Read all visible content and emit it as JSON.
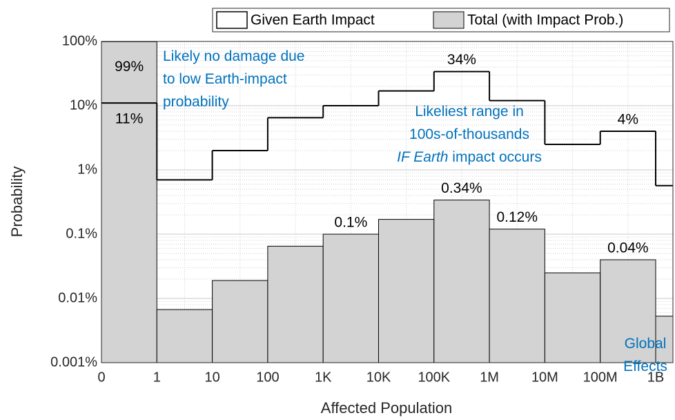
{
  "chart_data": {
    "type": "histogram",
    "xlabel": "Affected Population",
    "ylabel": "Probability",
    "x_edges": [
      "0",
      "1",
      "10",
      "100",
      "1K",
      "10K",
      "100K",
      "1M",
      "10M",
      "100M",
      "1B"
    ],
    "y_log": true,
    "ylim": [
      0.001,
      100
    ],
    "yticks": [
      {
        "value": 0.001,
        "label": "0.001%"
      },
      {
        "value": 0.01,
        "label": "0.01%"
      },
      {
        "value": 0.1,
        "label": "0.1%"
      },
      {
        "value": 1,
        "label": "1%"
      },
      {
        "value": 10,
        "label": "10%"
      },
      {
        "value": 100,
        "label": "100%"
      }
    ],
    "grid": true,
    "legend": "top-right",
    "series": [
      {
        "name": "Given Earth Impact",
        "style": "step",
        "color": "#000000",
        "values": [
          11,
          0.7,
          2,
          6.5,
          10,
          17,
          34,
          12,
          2.5,
          4,
          0.57
        ],
        "value_labels": [
          "11%",
          null,
          null,
          null,
          null,
          null,
          "34%",
          null,
          null,
          "4%",
          null
        ]
      },
      {
        "name": "Total (with Impact Prob.)",
        "style": "bar",
        "color": "#d3d3d3",
        "values": [
          99,
          0.0067,
          0.019,
          0.065,
          0.1,
          0.17,
          0.34,
          0.12,
          0.025,
          0.04,
          0.0053
        ],
        "value_labels": [
          "99%",
          null,
          null,
          null,
          "0.1%",
          null,
          "0.34%",
          "0.12%",
          null,
          "0.04%",
          null
        ]
      }
    ],
    "annotations": [
      {
        "lines": [
          [
            {
              "text": "Likely no damage due"
            }
          ],
          [
            {
              "text": "to low Earth-impact"
            }
          ],
          [
            {
              "text": "probability"
            }
          ]
        ]
      },
      {
        "lines": [
          [
            {
              "text": "Likeliest range in"
            }
          ],
          [
            {
              "text": "100s-of-thousands"
            }
          ],
          [
            {
              "text": "IF Earth",
              "italic": true
            },
            {
              "text": " impact occurs"
            }
          ]
        ]
      },
      {
        "lines": [
          [
            {
              "text": "Global"
            }
          ],
          [
            {
              "text": "Effects"
            }
          ]
        ]
      }
    ]
  }
}
